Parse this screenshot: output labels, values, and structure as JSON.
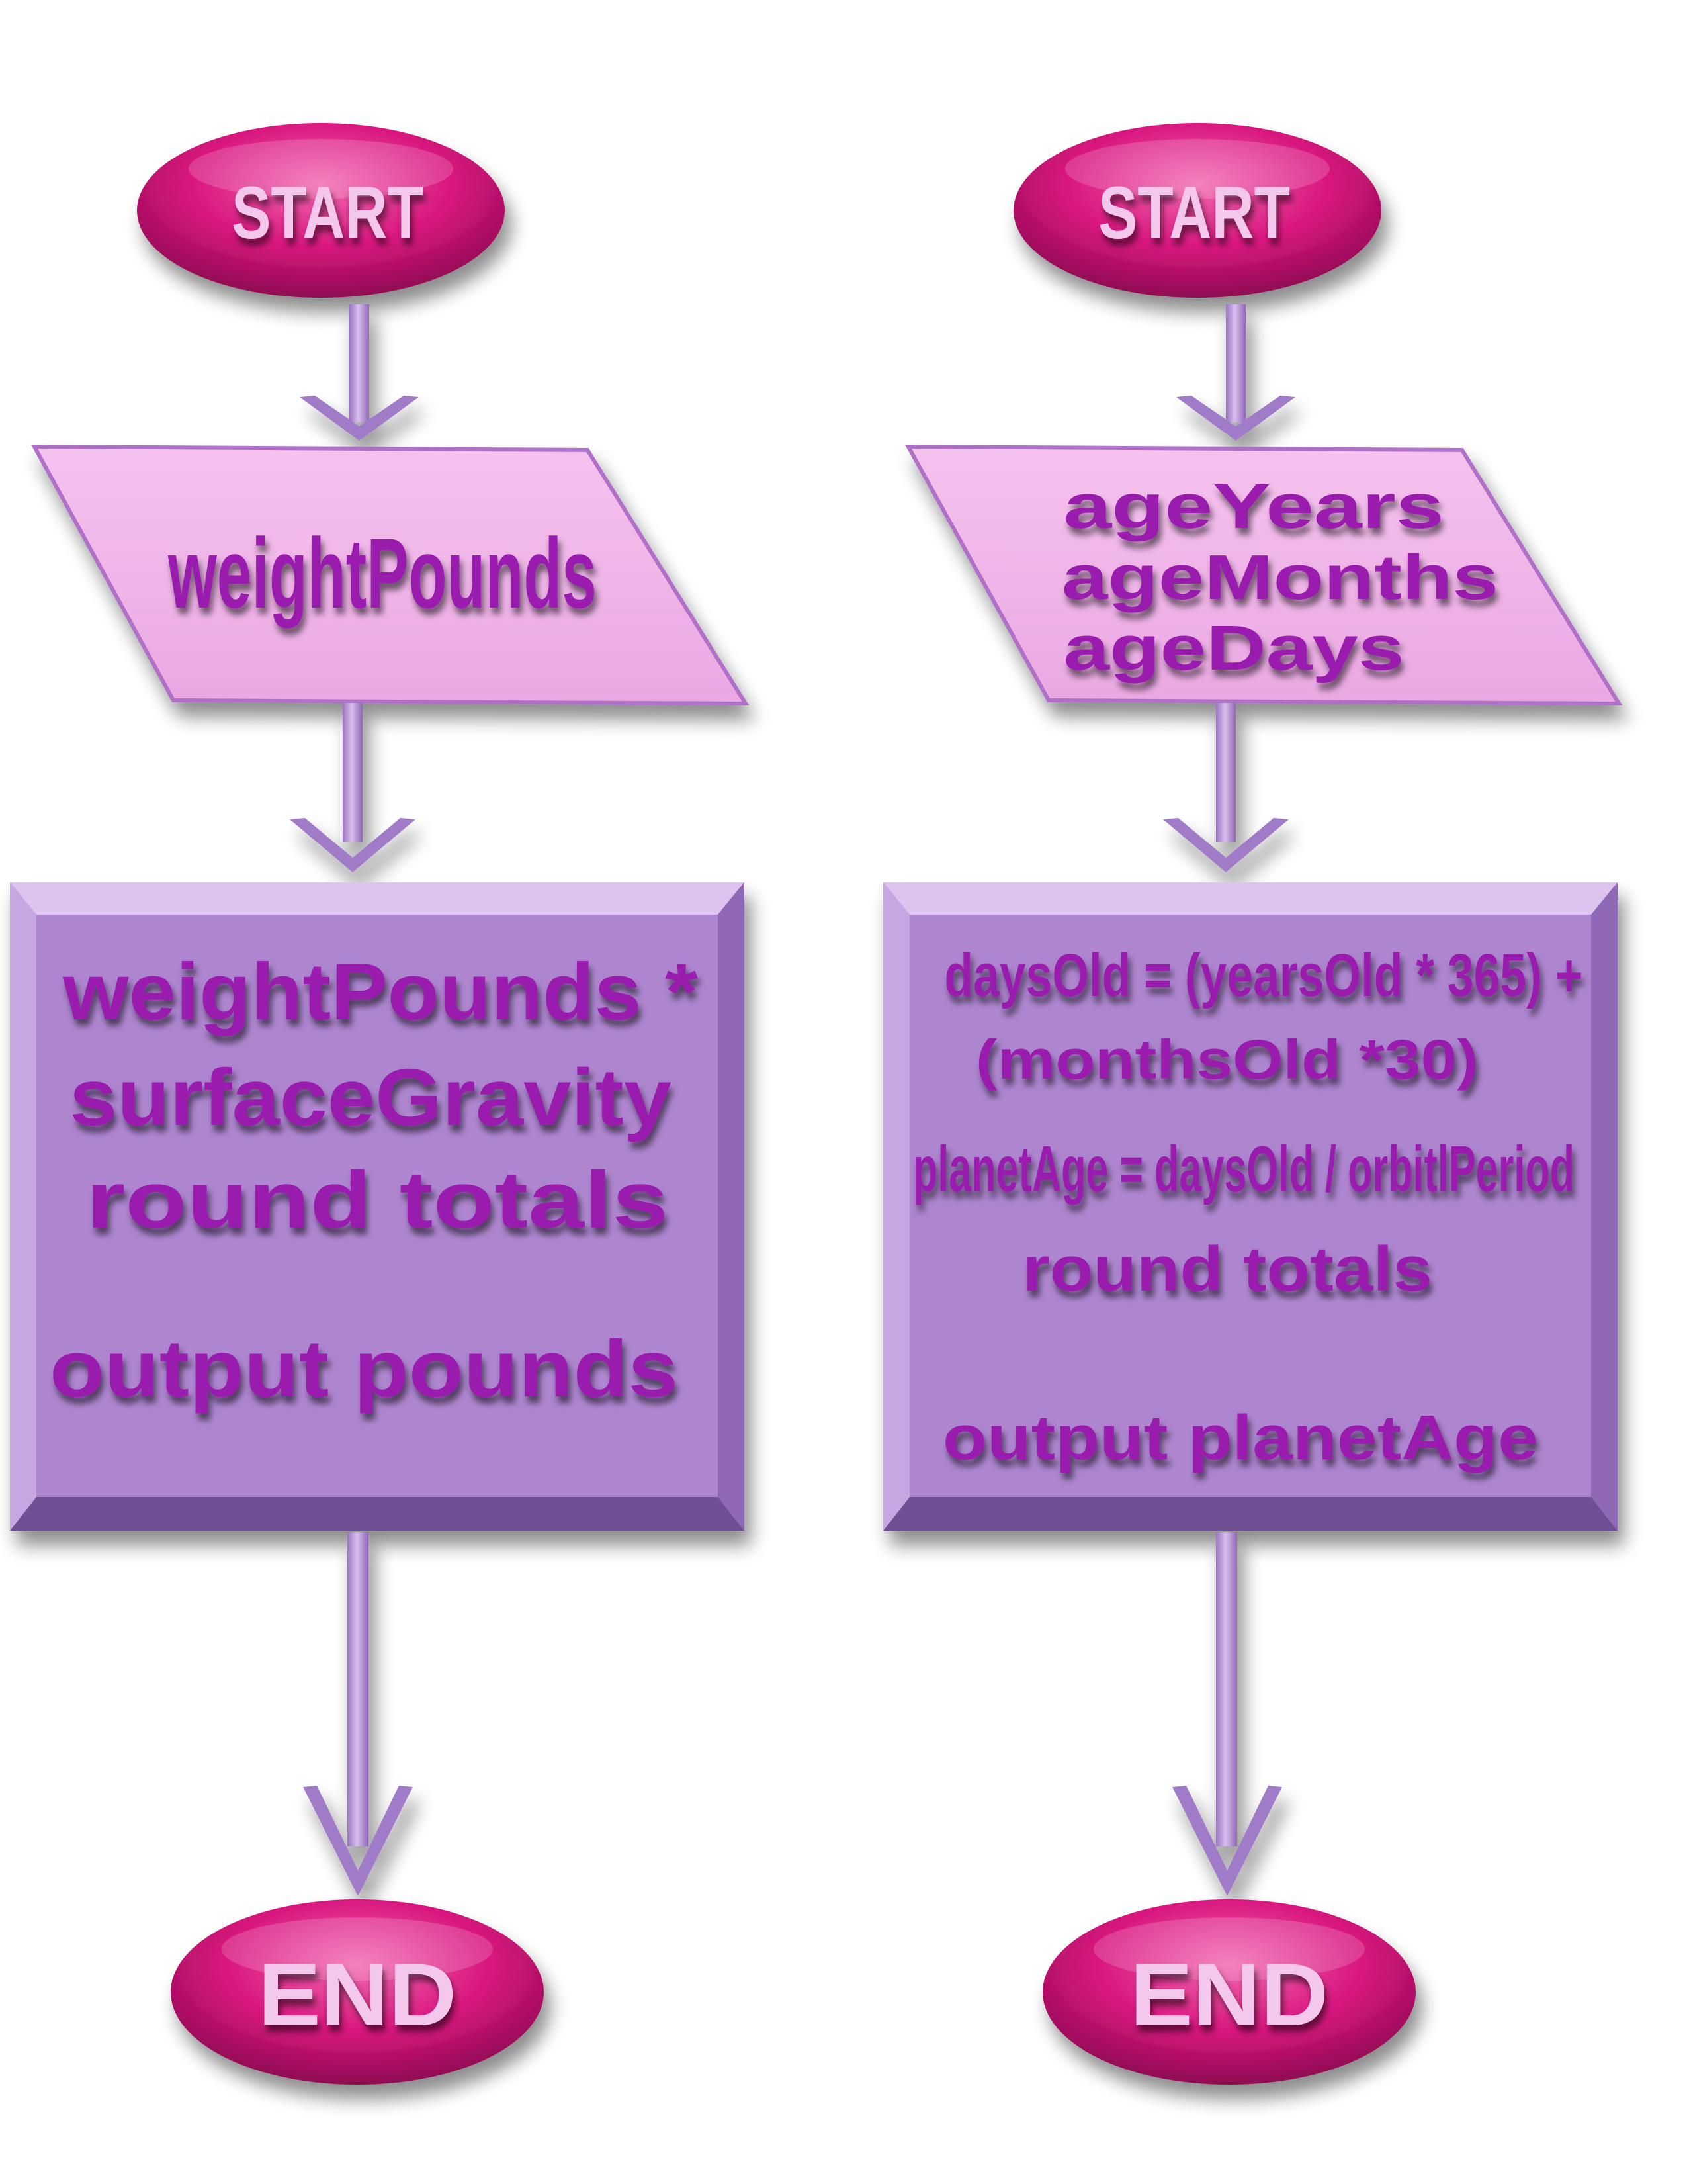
{
  "colors": {
    "terminal": "#d9167f",
    "terminal_text": "#f3c8ec",
    "input_fill": "#f0b0e6",
    "process_fill": "#ae86d0",
    "arrow": "#b490d2",
    "text": "#9a1fae"
  },
  "left_flow": {
    "start": "START",
    "input": [
      "weightPounds"
    ],
    "process": [
      "weightPounds *",
      "surfaceGravity",
      "round totals",
      "output pounds"
    ],
    "end": "END"
  },
  "right_flow": {
    "start": "START",
    "input": [
      "ageYears",
      "ageMonths",
      "ageDays"
    ],
    "process": [
      "daysOld = (yearsOld * 365) +",
      "(monthsOld *30)",
      "planetAge = daysOld / orbitlPeriod",
      "round totals",
      "output planetAge"
    ],
    "end": "END"
  }
}
